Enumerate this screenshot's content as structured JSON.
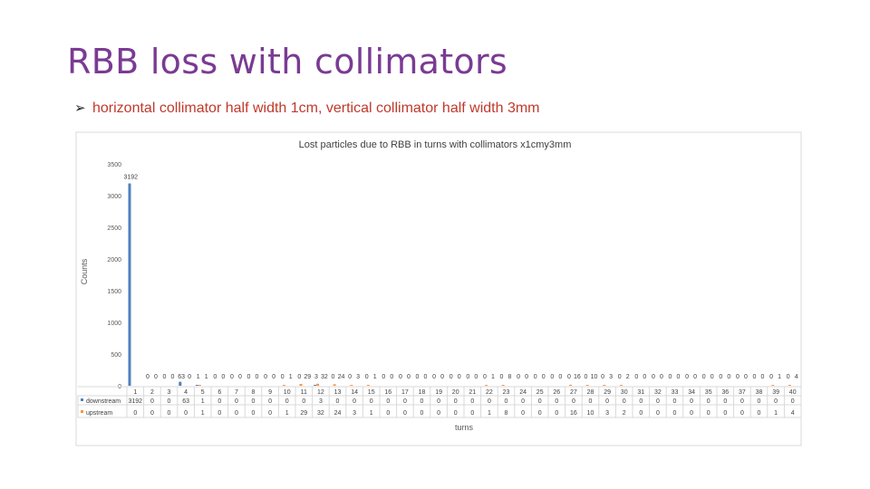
{
  "slide": {
    "title": "RBB loss with collimators",
    "bullet": "horizontal collimator half width 1cm, vertical collimator half width 3mm"
  },
  "colors": {
    "title": "#7a3b93",
    "bullet": "#c0392b",
    "downstream": "#4f81bd",
    "upstream": "#f79646"
  },
  "chart_data": {
    "type": "bar",
    "title": "Lost particles due to RBB in turns with collimators x1cmy3mm",
    "xlabel": "turns",
    "ylabel": "Counts",
    "ylim": [
      0,
      3500
    ],
    "yticks": [
      "0",
      "500",
      "1000",
      "1500",
      "2000",
      "2500",
      "3000",
      "3500"
    ],
    "grid": false,
    "legend": "table-below",
    "categories": [
      "1",
      "2",
      "3",
      "4",
      "5",
      "6",
      "7",
      "8",
      "9",
      "10",
      "11",
      "12",
      "13",
      "14",
      "15",
      "16",
      "17",
      "18",
      "19",
      "20",
      "21",
      "22",
      "23",
      "24",
      "25",
      "26",
      "27",
      "28",
      "29",
      "30",
      "31",
      "32",
      "33",
      "34",
      "35",
      "36",
      "37",
      "38",
      "39",
      "40"
    ],
    "series": [
      {
        "name": "downstream",
        "values": [
          3192,
          0,
          0,
          63,
          1,
          0,
          0,
          0,
          0,
          0,
          0,
          3,
          0,
          0,
          0,
          0,
          0,
          0,
          0,
          0,
          0,
          0,
          0,
          0,
          0,
          0,
          0,
          0,
          0,
          0,
          0,
          0,
          0,
          0,
          0,
          0,
          0,
          0,
          0,
          0
        ]
      },
      {
        "name": "upstream",
        "values": [
          0,
          0,
          0,
          0,
          1,
          0,
          0,
          0,
          0,
          1,
          29,
          32,
          24,
          3,
          1,
          0,
          0,
          0,
          0,
          0,
          0,
          1,
          8,
          0,
          0,
          0,
          16,
          10,
          3,
          2,
          0,
          0,
          0,
          0,
          0,
          0,
          0,
          0,
          1,
          4
        ]
      }
    ],
    "data_labels": [
      [
        "3192"
      ],
      [
        "0",
        "0"
      ],
      [
        "0",
        "0"
      ],
      [
        "63",
        "0"
      ],
      [
        "1",
        "1"
      ],
      [
        "0",
        "0"
      ],
      [
        "0",
        "0"
      ],
      [
        "0",
        "0"
      ],
      [
        "0",
        "0"
      ],
      [
        "0",
        "1"
      ],
      [
        "0",
        "29"
      ],
      [
        "3",
        "32"
      ],
      [
        "0",
        "24"
      ],
      [
        "0",
        "3"
      ],
      [
        "0",
        "1"
      ],
      [
        "0",
        "0"
      ],
      [
        "0",
        "0"
      ],
      [
        "0",
        "0"
      ],
      [
        "0",
        "0"
      ],
      [
        "0",
        "0"
      ],
      [
        "0",
        "0"
      ],
      [
        "0",
        "1"
      ],
      [
        "0",
        "8"
      ],
      [
        "0",
        "0"
      ],
      [
        "0",
        "0"
      ],
      [
        "0",
        "0"
      ],
      [
        "0",
        "16"
      ],
      [
        "0",
        "10"
      ],
      [
        "0",
        "3"
      ],
      [
        "0",
        "2"
      ],
      [
        "0",
        "0"
      ],
      [
        "0",
        "0"
      ],
      [
        "0",
        "0"
      ],
      [
        "0",
        "0"
      ],
      [
        "0",
        "0"
      ],
      [
        "0",
        "0"
      ],
      [
        "0",
        "0"
      ],
      [
        "0",
        "0"
      ],
      [
        "0",
        "1"
      ],
      [
        "0",
        "4"
      ]
    ]
  }
}
